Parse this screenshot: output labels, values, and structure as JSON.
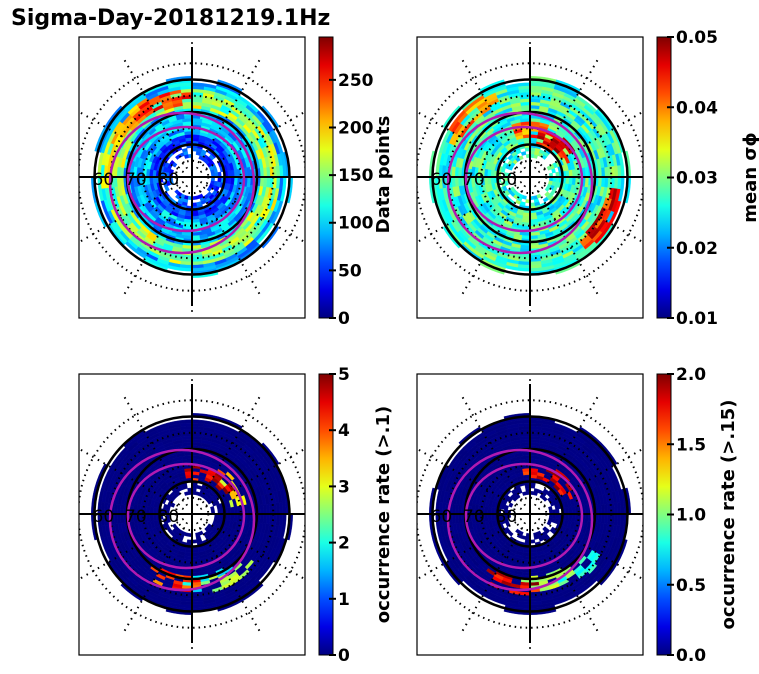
{
  "title": "Sigma-Day-20181219.1Hz",
  "chart_data": [
    {
      "type": "heatmap",
      "projection": "polar (MLAT/MLT)",
      "panel": "top-left",
      "colorbar_label": "Data points",
      "colormap": "jet",
      "clim": [
        0,
        295
      ],
      "colorbar_ticks": [
        "0",
        "50",
        "100",
        "150",
        "200",
        "250"
      ],
      "colorbar_tick_values": [
        0,
        50,
        100,
        150,
        200,
        250
      ],
      "lat_labels": [
        "60",
        "70",
        "80"
      ],
      "description": "Counts are mostly 50-150 with a 150-200 ring near 65-70 MLAT and peaks ~250-290 on the dusk/pre-noon side",
      "background_level": 75,
      "hotspots": [
        {
          "mlt": 13.5,
          "mlat": 65,
          "value": 270
        },
        {
          "mlt": 15,
          "mlat": 64,
          "value": 230
        },
        {
          "mlt": 17,
          "mlat": 63,
          "value": 200
        }
      ]
    },
    {
      "type": "heatmap",
      "projection": "polar (MLAT/MLT)",
      "panel": "top-right",
      "colorbar_label": "mean σϕ",
      "colormap": "jet",
      "clim": [
        0.01,
        0.05
      ],
      "colorbar_ticks": [
        "0.01",
        "0.02",
        "0.03",
        "0.04",
        "0.05"
      ],
      "colorbar_tick_values": [
        0.01,
        0.02,
        0.03,
        0.04,
        0.05
      ],
      "lat_labels": [
        "60",
        "70",
        "80"
      ],
      "description": "Mean sigma-phi mostly 0.022-0.03, enhanced (>0.045) in the dayside cusp near 75-80 MLAT",
      "background_level": 0.026,
      "hotspots": [
        {
          "mlt": 10.5,
          "mlat": 77,
          "value": 0.05
        },
        {
          "mlt": 9,
          "mlat": 76,
          "value": 0.05
        },
        {
          "mlt": 12,
          "mlat": 75,
          "value": 0.045
        },
        {
          "mlt": 4,
          "mlat": 63,
          "value": 0.05
        },
        {
          "mlt": 15,
          "mlat": 63,
          "value": 0.045
        }
      ]
    },
    {
      "type": "heatmap",
      "projection": "polar (MLAT/MLT)",
      "panel": "bottom-left",
      "colorbar_label": "occurrence rate (>.1)",
      "colormap": "jet",
      "clim": [
        0,
        5
      ],
      "colorbar_ticks": [
        "0",
        "1",
        "2",
        "3",
        "4",
        "5"
      ],
      "colorbar_tick_values": [
        0,
        1,
        2,
        3,
        4,
        5
      ],
      "lat_labels": [
        "60",
        "70",
        "80"
      ],
      "description": "Occurrence rate near 0 everywhere except dayside cusp (>5) and scattered nightside/dusk bins",
      "background_level": 0.05,
      "hotspots": [
        {
          "mlt": 11,
          "mlat": 77,
          "value": 5
        },
        {
          "mlt": 9.5,
          "mlat": 76,
          "value": 5
        },
        {
          "mlt": 8,
          "mlat": 75,
          "value": 3.5
        },
        {
          "mlt": 1,
          "mlat": 68,
          "value": 2
        },
        {
          "mlt": 23,
          "mlat": 68,
          "value": 4.5
        },
        {
          "mlt": 2,
          "mlat": 67,
          "value": 3
        }
      ]
    },
    {
      "type": "heatmap",
      "projection": "polar (MLAT/MLT)",
      "panel": "bottom-right",
      "colorbar_label": "occurrence rate (>.15)",
      "colormap": "jet",
      "clim": [
        0,
        2
      ],
      "colorbar_ticks": [
        "0.0",
        "0.5",
        "1.0",
        "1.5",
        "2.0"
      ],
      "colorbar_tick_values": [
        0,
        0.5,
        1.0,
        1.5,
        2.0
      ],
      "lat_labels": [
        "60",
        "70",
        "80"
      ],
      "description": "Occurrence rate near 0 everywhere except dayside cusp (~2) and a few nightside bins",
      "background_level": 0.02,
      "hotspots": [
        {
          "mlt": 11,
          "mlat": 77,
          "value": 2
        },
        {
          "mlt": 9,
          "mlat": 76,
          "value": 2
        },
        {
          "mlt": 1,
          "mlat": 68,
          "value": 1.2
        },
        {
          "mlt": 23,
          "mlat": 67,
          "value": 2
        },
        {
          "mlt": 3,
          "mlat": 66,
          "value": 0.9
        }
      ]
    }
  ]
}
